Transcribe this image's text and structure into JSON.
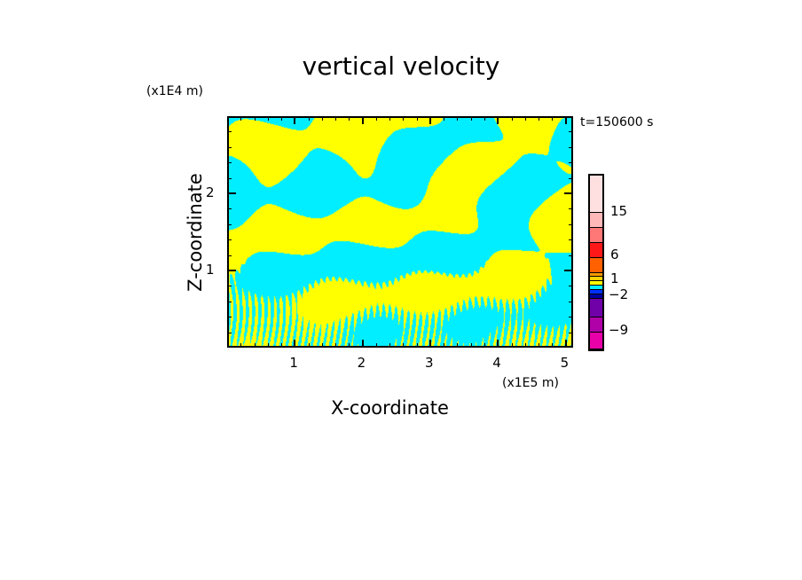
{
  "chart_data": {
    "type": "heatmap",
    "title": "vertical velocity",
    "xlabel": "X-coordinate",
    "ylabel": "Z-coordinate",
    "x_units": "(x1E5 m)",
    "y_units": "(x1E4 m)",
    "time_label": "t=150600 s",
    "xlim": [
      0,
      5.11
    ],
    "ylim": [
      0,
      3.0
    ],
    "xticks": [
      "1",
      "2",
      "3",
      "4",
      "5"
    ],
    "xtick_values": [
      1,
      2,
      3,
      4,
      5
    ],
    "yticks": [
      "1",
      "2"
    ],
    "ytick_values": [
      1,
      2
    ],
    "field_colors": {
      "positive": "#ffff00",
      "negative": "#00eeff"
    },
    "colorbar": {
      "labels": [
        "15",
        "6",
        "1",
        "−2",
        "−9"
      ],
      "segments": [
        {
          "color": "#ffe0e0",
          "weight": 42
        },
        {
          "color": "#ffb8b8",
          "weight": 17,
          "label_after": "15"
        },
        {
          "color": "#ff7878",
          "weight": 17
        },
        {
          "color": "#ff1818",
          "weight": 17
        },
        {
          "color": "#ff6000",
          "weight": 17,
          "label_after": "6"
        },
        {
          "color": "#ff9a00",
          "weight": 4
        },
        {
          "color": "#ffd000",
          "weight": 5
        },
        {
          "color": "#ffff00",
          "weight": 5,
          "label_after": "1"
        },
        {
          "color": "#00eeff",
          "weight": 5
        },
        {
          "color": "#0030ff",
          "weight": 5,
          "label_after": "-2"
        },
        {
          "color": "#0000a0",
          "weight": 5
        },
        {
          "color": "#7000a8",
          "weight": 21
        },
        {
          "color": "#b000a8",
          "weight": 17
        },
        {
          "color": "#e800a8",
          "weight": 19
        }
      ]
    }
  }
}
